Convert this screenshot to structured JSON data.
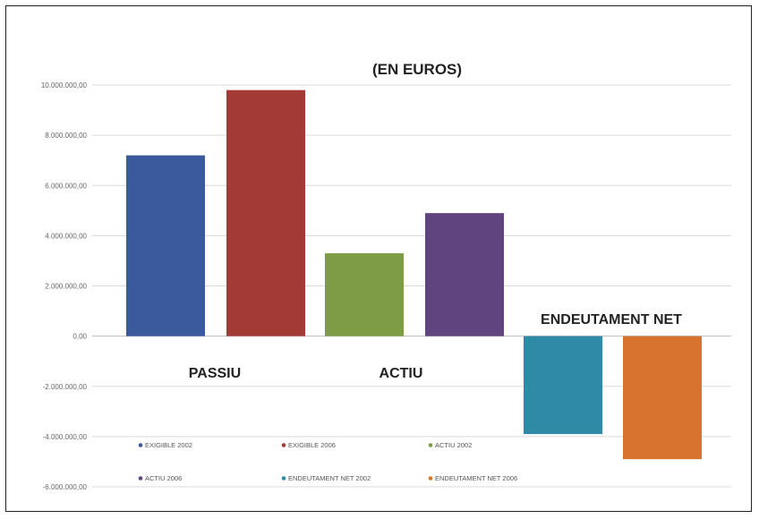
{
  "chart_data": {
    "type": "bar",
    "title": "(EN EUROS)",
    "xlabel": "",
    "ylabel": "",
    "ylim": [
      -6000000,
      11000000
    ],
    "yticks": [
      {
        "value": 10000000,
        "label": "10.000.000,00"
      },
      {
        "value": 8000000,
        "label": "8.000.000,00"
      },
      {
        "value": 6000000,
        "label": "6.000.000,00"
      },
      {
        "value": 4000000,
        "label": "4.000.000,00"
      },
      {
        "value": 2000000,
        "label": "2.000.000,00"
      },
      {
        "value": 0,
        "label": "0,00"
      },
      {
        "value": -2000000,
        "label": "-2.000.000,00"
      },
      {
        "value": -4000000,
        "label": "-4.000.000,00"
      },
      {
        "value": -6000000,
        "label": "-6.000.000,00"
      }
    ],
    "grid": true,
    "legend_position": "bottom",
    "groups": [
      "PASSIU",
      "ACTIU",
      "ENDEUTAMENT NET"
    ],
    "series": [
      {
        "name": "EXIGIBLE 2002",
        "group": "PASSIU",
        "value": 7200000,
        "color": "#3b5a9d"
      },
      {
        "name": "EXIGIBLE 2006",
        "group": "PASSIU",
        "value": 9800000,
        "color": "#a33a36"
      },
      {
        "name": "ACTIU 2002",
        "group": "ACTIU",
        "value": 3300000,
        "color": "#7e9c45"
      },
      {
        "name": "ACTIU 2006",
        "group": "ACTIU",
        "value": 4900000,
        "color": "#60447f"
      },
      {
        "name": "ENDEUTAMENT NET 2002",
        "group": "ENDEUTAMENT NET",
        "value": -3900000,
        "color": "#2e8aa6"
      },
      {
        "name": "ENDEUTAMENT NET 2006",
        "group": "ENDEUTAMENT NET",
        "value": -4900000,
        "color": "#d8722f"
      }
    ]
  }
}
